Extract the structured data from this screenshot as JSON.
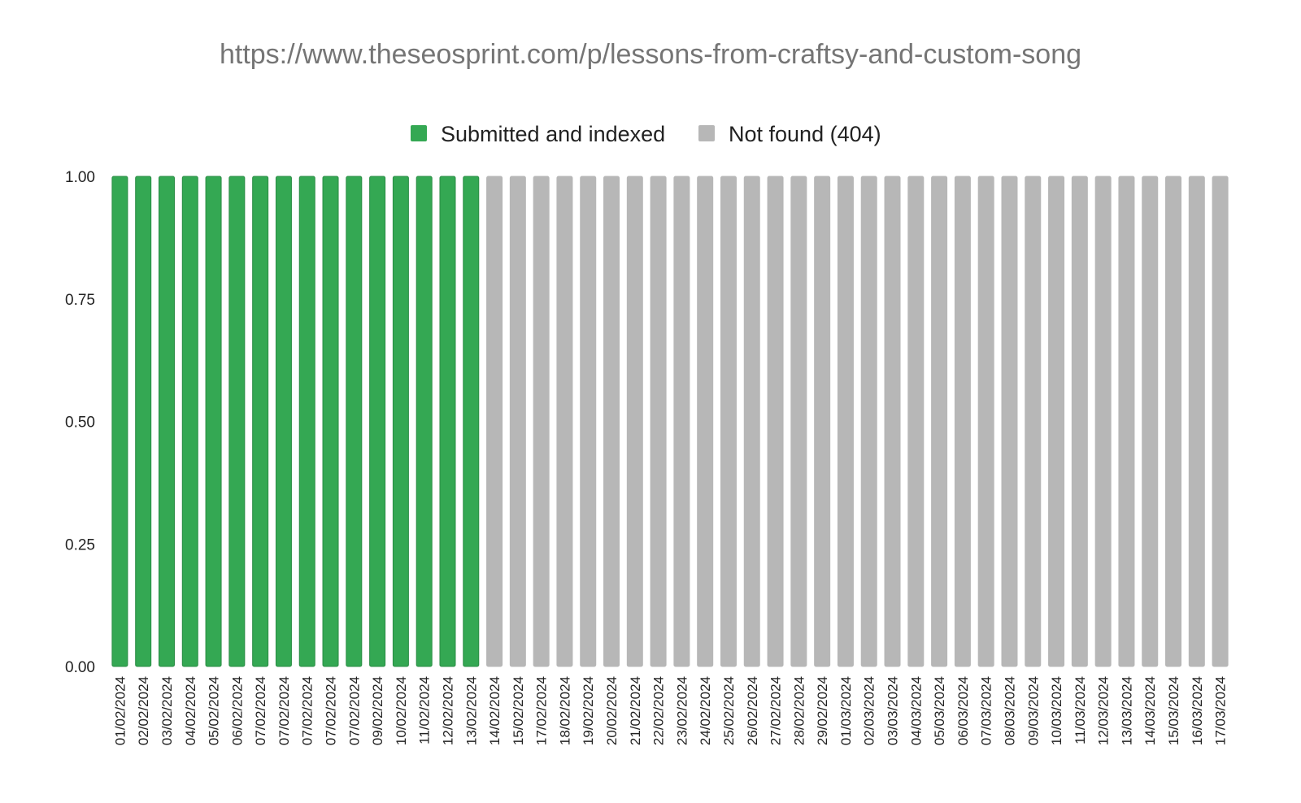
{
  "chart_data": {
    "type": "bar",
    "title": "https://www.theseosprint.com/p/lessons-from-craftsy-and-custom-song",
    "xlabel": "",
    "ylabel": "",
    "ylim": [
      0,
      1
    ],
    "yticks": [
      "0.00",
      "0.25",
      "0.50",
      "0.75",
      "1.00"
    ],
    "grid": false,
    "legend_position": "top",
    "categories": [
      "01/02/2024",
      "02/02/2024",
      "03/02/2024",
      "04/02/2024",
      "05/02/2024",
      "06/02/2024",
      "07/02/2024",
      "07/02/2024",
      "07/02/2024",
      "07/02/2024",
      "07/02/2024",
      "09/02/2024",
      "10/02/2024",
      "11/02/2024",
      "12/02/2024",
      "13/02/2024",
      "14/02/2024",
      "15/02/2024",
      "17/02/2024",
      "18/02/2024",
      "19/02/2024",
      "20/02/2024",
      "21/02/2024",
      "22/02/2024",
      "23/02/2024",
      "24/02/2024",
      "25/02/2024",
      "26/02/2024",
      "27/02/2024",
      "28/02/2024",
      "29/02/2024",
      "01/03/2024",
      "02/03/2024",
      "03/03/2024",
      "04/03/2024",
      "05/03/2024",
      "06/03/2024",
      "07/03/2024",
      "08/03/2024",
      "09/03/2024",
      "10/03/2024",
      "11/03/2024",
      "12/03/2024",
      "13/03/2024",
      "14/03/2024",
      "15/03/2024",
      "16/03/2024",
      "17/03/2024"
    ],
    "series": [
      {
        "name": "Submitted and indexed",
        "color": "#34a853",
        "border": "#2b8c45",
        "values": [
          1,
          1,
          1,
          1,
          1,
          1,
          1,
          1,
          1,
          1,
          1,
          1,
          1,
          1,
          1,
          1,
          0,
          0,
          0,
          0,
          0,
          0,
          0,
          0,
          0,
          0,
          0,
          0,
          0,
          0,
          0,
          0,
          0,
          0,
          0,
          0,
          0,
          0,
          0,
          0,
          0,
          0,
          0,
          0,
          0,
          0,
          0,
          0
        ]
      },
      {
        "name": "Not found (404)",
        "color": "#b7b7b7",
        "border": "#b7b7b7",
        "values": [
          0,
          0,
          0,
          0,
          0,
          0,
          0,
          0,
          0,
          0,
          0,
          0,
          0,
          0,
          0,
          0,
          1,
          1,
          1,
          1,
          1,
          1,
          1,
          1,
          1,
          1,
          1,
          1,
          1,
          1,
          1,
          1,
          1,
          1,
          1,
          1,
          1,
          1,
          1,
          1,
          1,
          1,
          1,
          1,
          1,
          1,
          1,
          1
        ]
      }
    ]
  }
}
